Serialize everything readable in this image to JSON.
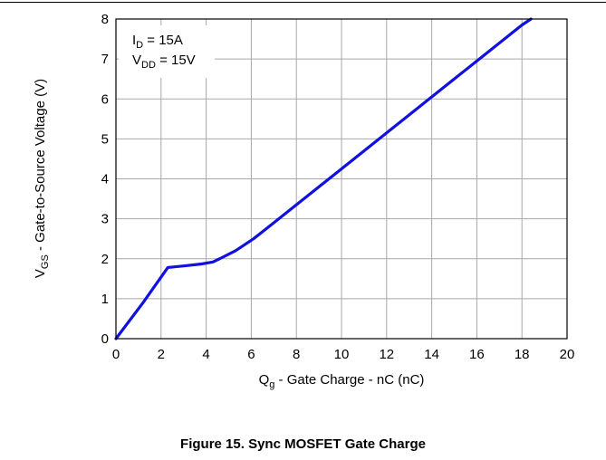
{
  "caption": "Figure 15. Sync MOSFET Gate Charge",
  "chart_data": {
    "type": "line",
    "xlabel": {
      "main": "Q",
      "sub": "g",
      "rest": " - Gate Charge - nC (nC)"
    },
    "ylabel": {
      "main": "V",
      "sub": "GS",
      "rest": " - Gate-to-Source Voltage (V)"
    },
    "xlim": [
      0,
      20
    ],
    "ylim": [
      0,
      8
    ],
    "xticks": [
      0,
      2,
      4,
      6,
      8,
      10,
      12,
      14,
      16,
      18,
      20
    ],
    "yticks": [
      0,
      1,
      2,
      3,
      4,
      5,
      6,
      7,
      8
    ],
    "grid": true,
    "annotations": [
      {
        "main": "I",
        "sub": "D",
        "rest": " = 15A"
      },
      {
        "main": "V",
        "sub": "DD",
        "rest": " = 15V"
      }
    ],
    "line_color": "#1010e0",
    "series": [
      {
        "x": [
          0,
          1.2,
          2.3,
          3.0,
          3.8,
          4.3,
          4.6,
          5.3,
          6.1,
          7.0,
          8.0,
          10.0,
          12.0,
          14.0,
          16.0,
          18.0,
          18.4
        ],
        "y": [
          0,
          0.9,
          1.78,
          1.82,
          1.87,
          1.92,
          2.0,
          2.2,
          2.5,
          2.9,
          3.35,
          4.25,
          5.15,
          6.05,
          6.95,
          7.85,
          8.0
        ]
      }
    ]
  }
}
